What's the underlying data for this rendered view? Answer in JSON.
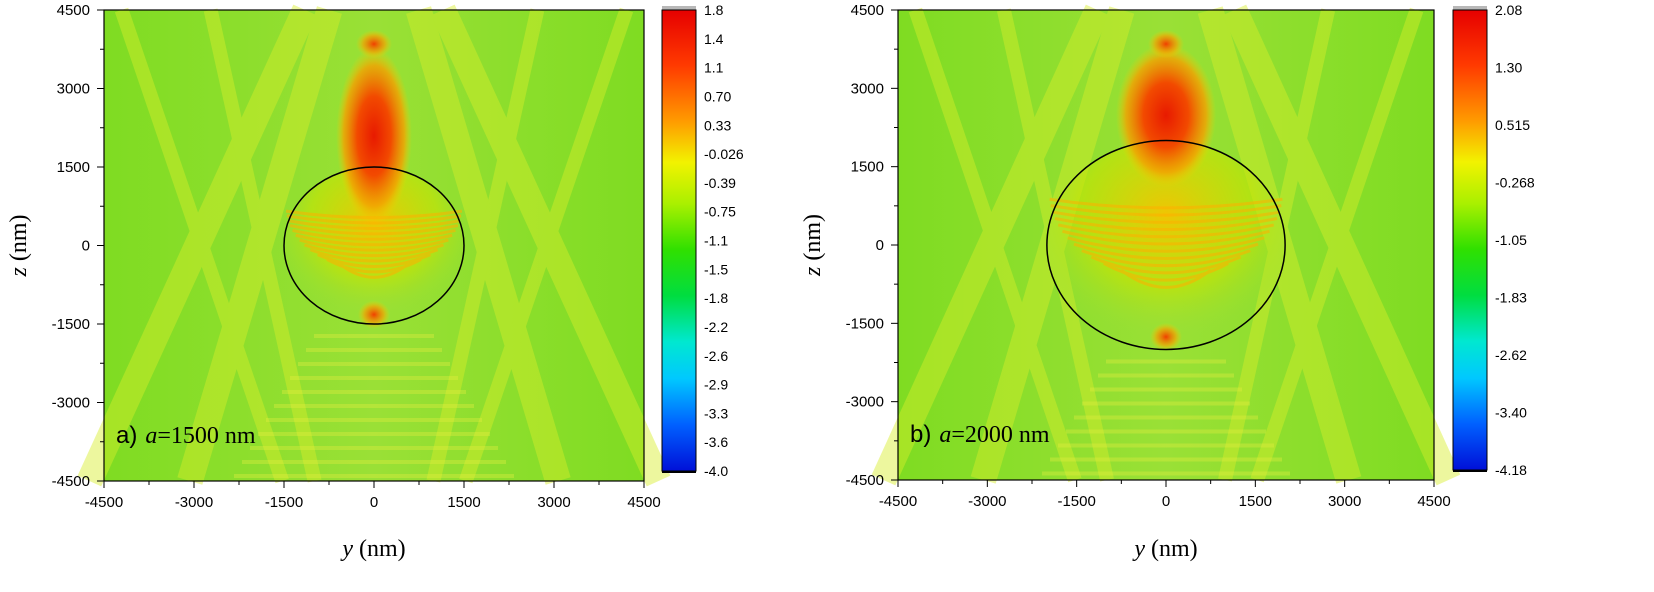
{
  "chart_data": [
    {
      "type": "heatmap",
      "panel_label": "a)",
      "param_symbol": "a",
      "param_value": "=1500 nm",
      "xlabel": {
        "symbol": "y",
        "unit": " (nm)"
      },
      "ylabel": {
        "symbol": "z",
        "unit": " (nm)"
      },
      "xlim": [
        -4500,
        4500
      ],
      "ylim": [
        -4500,
        4500
      ],
      "x_ticks": [
        "-4500",
        "-3000",
        "-1500",
        "0",
        "1500",
        "3000",
        "4500"
      ],
      "y_ticks": [
        "4500",
        "3000",
        "1500",
        "0",
        "-1500",
        "-3000",
        "-4500"
      ],
      "sphere_radius": 1500,
      "colorbar": {
        "min": -4.0,
        "max": 1.8,
        "labels": [
          "1.8",
          "1.4",
          "1.1",
          "0.70",
          "0.33",
          "-0.026",
          "-0.39",
          "-0.75",
          "-1.1",
          "-1.5",
          "-1.8",
          "-2.2",
          "-2.6",
          "-2.9",
          "-3.3",
          "-3.6",
          "-4.0"
        ]
      }
    },
    {
      "type": "heatmap",
      "panel_label": "b)",
      "param_symbol": "a",
      "param_value": "=2000 nm",
      "xlabel": {
        "symbol": "y",
        "unit": " (nm)"
      },
      "ylabel": {
        "symbol": "z",
        "unit": " (nm)"
      },
      "xlim": [
        -4500,
        4500
      ],
      "ylim": [
        -4500,
        4500
      ],
      "x_ticks": [
        "-4500",
        "-3000",
        "-1500",
        "0",
        "1500",
        "3000",
        "4500"
      ],
      "y_ticks": [
        "4500",
        "3000",
        "1500",
        "0",
        "-1500",
        "-3000",
        "-4500"
      ],
      "sphere_radius": 2000,
      "colorbar": {
        "min": -4.18,
        "max": 2.08,
        "labels": [
          "2.08",
          "1.30",
          "0.515",
          "-0.268",
          "-1.05",
          "-1.83",
          "-2.62",
          "-3.40",
          "-4.18"
        ]
      }
    }
  ]
}
